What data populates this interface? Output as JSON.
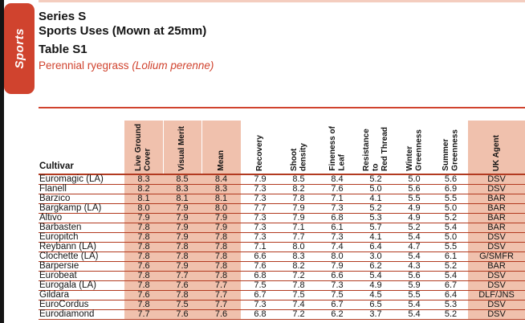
{
  "page": {
    "tab_label": "Sports",
    "title_line1": "Series S",
    "title_line2": "Sports Uses (Mown at 25mm)",
    "table_label": "Table S1",
    "species_plain": "Perennial ryegrass ",
    "species_latin": "(Lolium perenne)"
  },
  "colors": {
    "accent_red": "#d0432e",
    "highlight_pink": "#f0c1ad",
    "row_line_red": "#b23a20"
  },
  "table": {
    "cultivar_header": "Cultivar",
    "columns": [
      {
        "label": "Live Ground\nCover",
        "highlight": true
      },
      {
        "label": "Visual Merit",
        "highlight": true
      },
      {
        "label": "Mean",
        "highlight": true
      },
      {
        "label": "Recovery",
        "highlight": false
      },
      {
        "label": "Shoot\ndensity",
        "highlight": false
      },
      {
        "label": "Fineness of\nLeaf",
        "highlight": false
      },
      {
        "label": "Resistance to\nRed Thread",
        "highlight": false
      },
      {
        "label": "Winter\nGreenness",
        "highlight": false
      },
      {
        "label": "Summer\nGreenness",
        "highlight": false
      },
      {
        "label": "UK Agent",
        "highlight": true
      }
    ],
    "rows": [
      {
        "cultivar": "Euromagic (LA)",
        "values": [
          "8.3",
          "8.5",
          "8.4",
          "7.9",
          "8.5",
          "8.4",
          "5.2",
          "5.0",
          "5.6",
          "DSV"
        ]
      },
      {
        "cultivar": "Flanell",
        "values": [
          "8.2",
          "8.3",
          "8.3",
          "7.3",
          "8.2",
          "7.6",
          "5.0",
          "5.6",
          "6.9",
          "DSV"
        ]
      },
      {
        "cultivar": "Barzico",
        "values": [
          "8.1",
          "8.1",
          "8.1",
          "7.3",
          "7.8",
          "7.1",
          "4.1",
          "5.5",
          "5.5",
          "BAR"
        ]
      },
      {
        "cultivar": "Bargkamp (LA)",
        "values": [
          "8.0",
          "7.9",
          "8.0",
          "7.7",
          "7.9",
          "7.3",
          "5.2",
          "4.9",
          "5.0",
          "BAR"
        ]
      },
      {
        "cultivar": "Altivo",
        "values": [
          "7.9",
          "7.9",
          "7.9",
          "7.3",
          "7.9",
          "6.8",
          "5.3",
          "4.9",
          "5.2",
          "BAR"
        ]
      },
      {
        "cultivar": "Barbasten",
        "values": [
          "7.8",
          "7.9",
          "7.9",
          "7.3",
          "7.1",
          "6.1",
          "5.7",
          "5.2",
          "5.4",
          "BAR"
        ]
      },
      {
        "cultivar": "Europitch",
        "values": [
          "7.8",
          "7.9",
          "7.8",
          "7.3",
          "7.7",
          "7.3",
          "4.1",
          "5.4",
          "5.0",
          "DSV"
        ]
      },
      {
        "cultivar": "Reybann (LA)",
        "values": [
          "7.8",
          "7.8",
          "7.8",
          "7.1",
          "8.0",
          "7.4",
          "6.4",
          "4.7",
          "5.5",
          "DSV"
        ]
      },
      {
        "cultivar": "Clochette (LA)",
        "values": [
          "7.8",
          "7.8",
          "7.8",
          "6.6",
          "8.3",
          "8.0",
          "3.0",
          "5.4",
          "6.1",
          "G/SMFR"
        ]
      },
      {
        "cultivar": "Barpersie",
        "values": [
          "7.6",
          "7.9",
          "7.8",
          "7.6",
          "8.2",
          "7.9",
          "6.2",
          "4.3",
          "5.2",
          "BAR"
        ]
      },
      {
        "cultivar": "Eurobeat",
        "values": [
          "7.8",
          "7.7",
          "7.8",
          "6.8",
          "7.2",
          "6.6",
          "5.4",
          "5.6",
          "5.4",
          "DSV"
        ]
      },
      {
        "cultivar": "Eurogala (LA)",
        "values": [
          "7.8",
          "7.6",
          "7.7",
          "7.5",
          "7.8",
          "7.3",
          "4.9",
          "5.9",
          "6.7",
          "DSV"
        ]
      },
      {
        "cultivar": "Gildara",
        "values": [
          "7.6",
          "7.8",
          "7.7",
          "6.7",
          "7.5",
          "7.5",
          "4.5",
          "5.5",
          "6.4",
          "DLF/JNS"
        ]
      },
      {
        "cultivar": "EuroCordus",
        "values": [
          "7.8",
          "7.5",
          "7.7",
          "7.3",
          "7.4",
          "6.7",
          "6.5",
          "5.4",
          "5.3",
          "DSV"
        ]
      },
      {
        "cultivar": "Eurodiamond",
        "values": [
          "7.7",
          "7.6",
          "7.6",
          "6.8",
          "7.2",
          "6.2",
          "3.7",
          "5.4",
          "5.2",
          "DSV"
        ]
      }
    ]
  }
}
